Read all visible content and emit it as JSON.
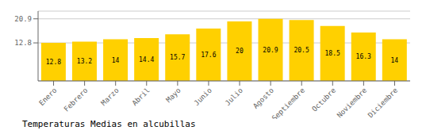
{
  "chart_data": {
    "type": "bar",
    "title": "Temperaturas Medias en alcubillas",
    "categories": [
      "Enero",
      "Febrero",
      "Marzo",
      "Abril",
      "Mayo",
      "Junio",
      "Julio",
      "Agosto",
      "Septiembre",
      "Octubre",
      "Noviembre",
      "Diciembre"
    ],
    "values": [
      12.8,
      13.2,
      14.0,
      14.4,
      15.7,
      17.6,
      20.0,
      20.9,
      20.5,
      18.5,
      16.3,
      14.0
    ],
    "color": "#FFD000",
    "ylim": [
      0.0,
      23.5
    ],
    "yticks": [
      12.8,
      20.9
    ],
    "grid": true,
    "data_labels": true
  }
}
